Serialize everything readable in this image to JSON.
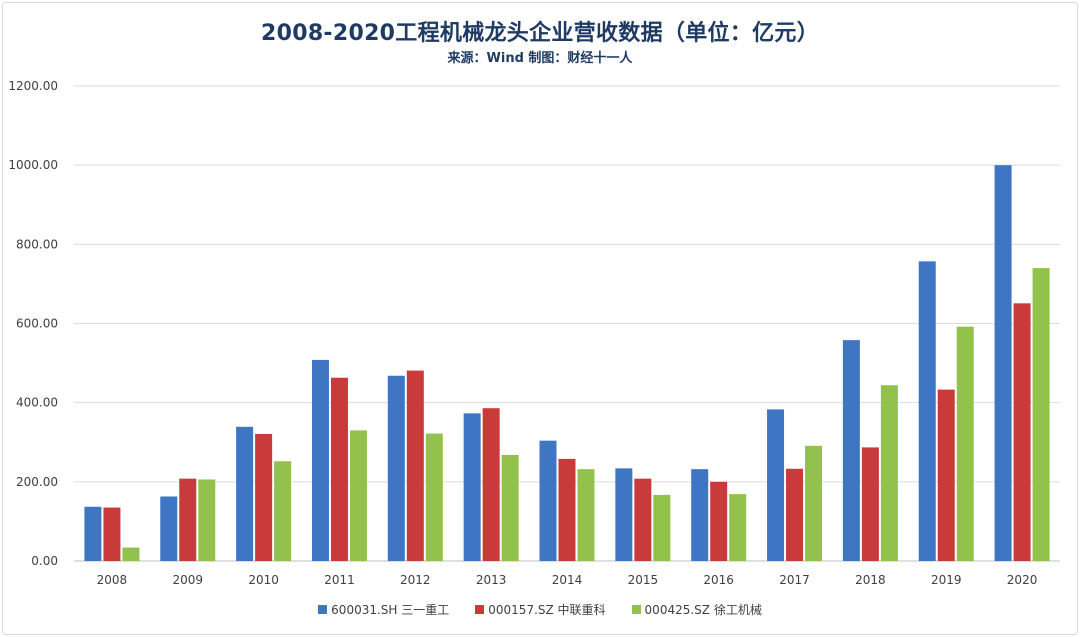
{
  "chart_data": {
    "type": "bar",
    "title": "2008-2020工程机械龙头企业营收数据（单位：亿元）",
    "subtitle": "来源：Wind 制图：财经十一人",
    "categories": [
      "2008",
      "2009",
      "2010",
      "2011",
      "2012",
      "2013",
      "2014",
      "2015",
      "2016",
      "2017",
      "2018",
      "2019",
      "2020"
    ],
    "series": [
      {
        "name": "600031.SH 三一重工",
        "color": "#3f76c4",
        "values": [
          137,
          163,
          339,
          508,
          468,
          373,
          304,
          234,
          232,
          383,
          558,
          757,
          1000
        ]
      },
      {
        "name": "000157.SZ 中联重科",
        "color": "#c93a3a",
        "values": [
          135,
          208,
          321,
          463,
          481,
          386,
          258,
          208,
          200,
          233,
          287,
          433,
          651
        ]
      },
      {
        "name": "000425.SZ 徐工机械",
        "color": "#93c24c",
        "values": [
          34,
          206,
          252,
          330,
          322,
          268,
          232,
          167,
          169,
          291,
          444,
          592,
          740
        ]
      }
    ],
    "ylim": [
      0,
      1200
    ],
    "yticks": [
      "0.00",
      "200.00",
      "400.00",
      "600.00",
      "800.00",
      "1000.00",
      "1200.00"
    ],
    "xlabel": "",
    "ylabel": "",
    "grid": true,
    "legend_position": "bottom"
  }
}
